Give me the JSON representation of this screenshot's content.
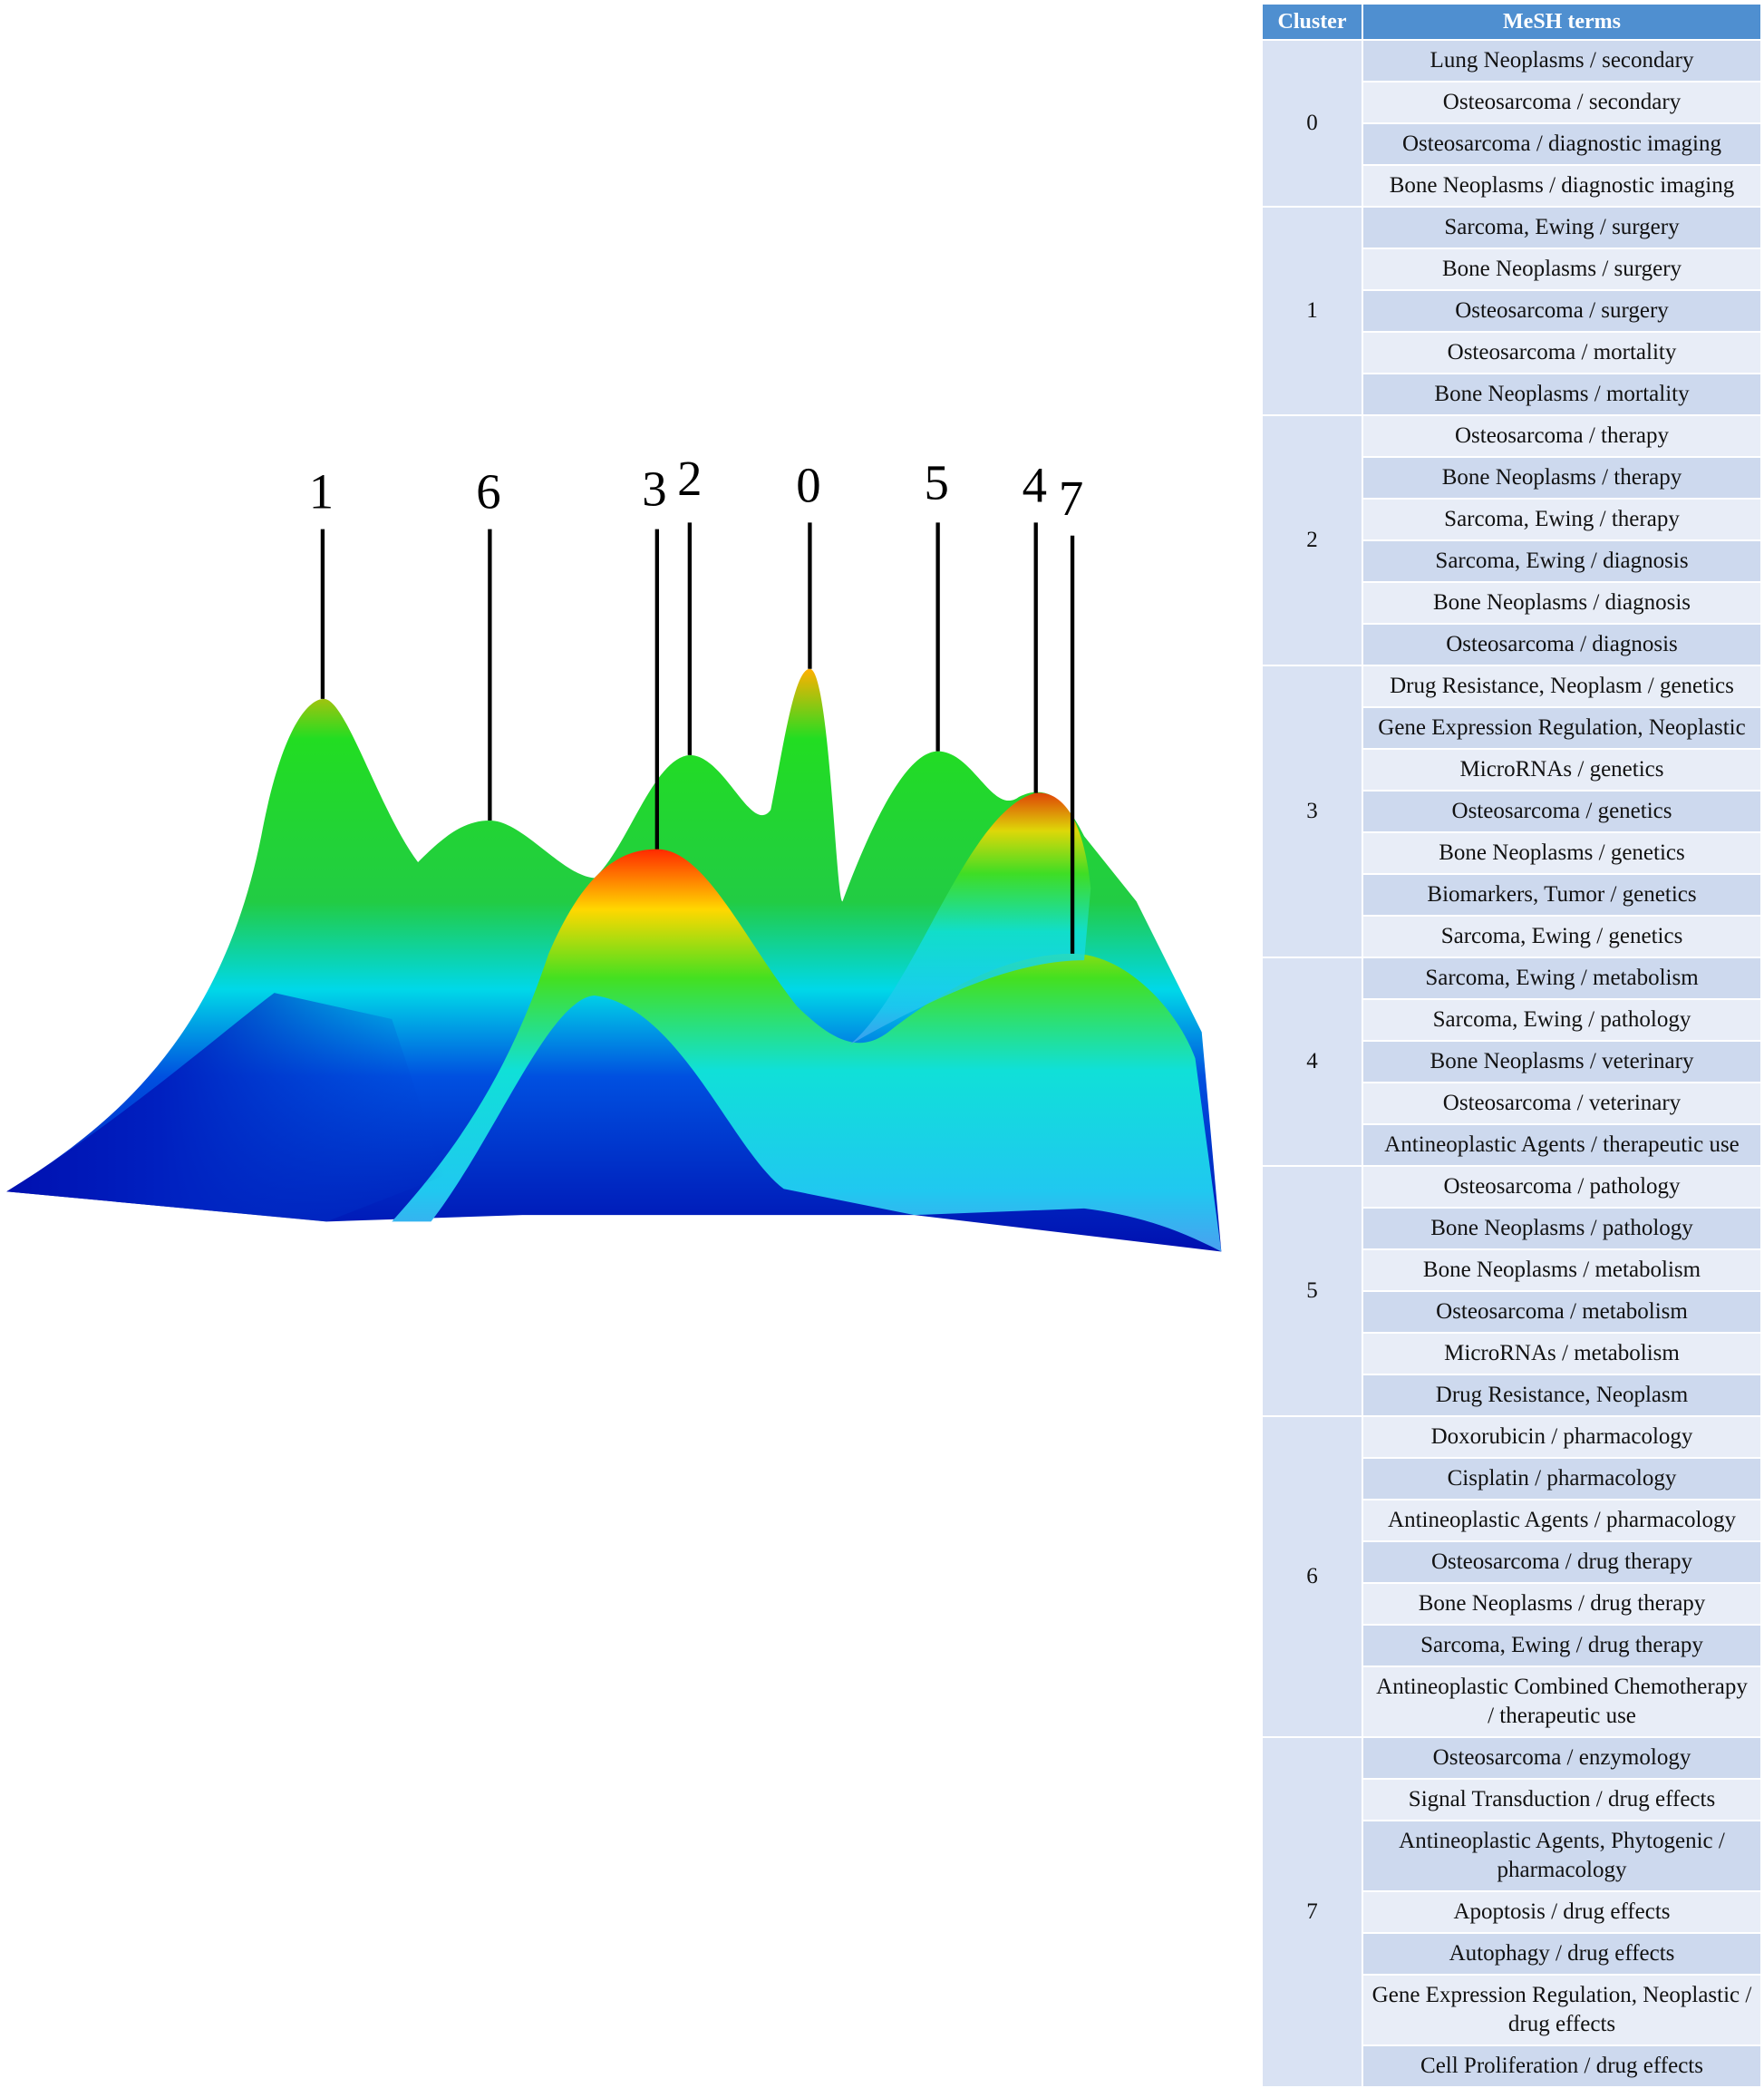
{
  "peak_labels": [
    "1",
    "6",
    "3",
    "2",
    "0",
    "5",
    "4",
    "7"
  ],
  "table": {
    "headers": [
      "Cluster",
      "MeSH terms"
    ],
    "groups": [
      {
        "cluster": "0",
        "terms": [
          "Lung Neoplasms / secondary",
          "Osteosarcoma / secondary",
          "Osteosarcoma / diagnostic imaging",
          "Bone Neoplasms / diagnostic imaging"
        ]
      },
      {
        "cluster": "1",
        "terms": [
          "Sarcoma, Ewing / surgery",
          "Bone Neoplasms / surgery",
          "Osteosarcoma / surgery",
          "Osteosarcoma / mortality",
          "Bone Neoplasms / mortality"
        ]
      },
      {
        "cluster": "2",
        "terms": [
          "Osteosarcoma / therapy",
          "Bone Neoplasms / therapy",
          "Sarcoma, Ewing / therapy",
          "Sarcoma, Ewing / diagnosis",
          "Bone Neoplasms / diagnosis",
          "Osteosarcoma / diagnosis"
        ]
      },
      {
        "cluster": "3",
        "terms": [
          "Drug Resistance, Neoplasm / genetics",
          "Gene Expression Regulation, Neoplastic",
          "MicroRNAs / genetics",
          "Osteosarcoma / genetics",
          "Bone Neoplasms / genetics",
          "Biomarkers, Tumor / genetics",
          "Sarcoma, Ewing / genetics"
        ]
      },
      {
        "cluster": "4",
        "terms": [
          "Sarcoma, Ewing / metabolism",
          "Sarcoma, Ewing / pathology",
          "Bone Neoplasms / veterinary",
          "Osteosarcoma / veterinary",
          "Antineoplastic Agents / therapeutic use"
        ]
      },
      {
        "cluster": "5",
        "terms": [
          "Osteosarcoma / pathology",
          "Bone Neoplasms / pathology",
          "Bone Neoplasms / metabolism",
          "Osteosarcoma / metabolism",
          "MicroRNAs / metabolism",
          "Drug Resistance, Neoplasm"
        ]
      },
      {
        "cluster": "6",
        "terms": [
          "Doxorubicin / pharmacology",
          "Cisplatin / pharmacology",
          "Antineoplastic Agents / pharmacology",
          "Osteosarcoma / drug therapy",
          "Bone Neoplasms / drug therapy",
          "Sarcoma, Ewing / drug therapy",
          "Antineoplastic Combined Chemotherapy / therapeutic use"
        ]
      },
      {
        "cluster": "7",
        "terms": [
          "Osteosarcoma / enzymology",
          "Signal Transduction / drug effects",
          "Antineoplastic Agents, Phytogenic / pharmacology",
          "Apoptosis / drug effects",
          "Autophagy / drug effects",
          "Gene Expression Regulation, Neoplastic / drug effects",
          "Cell Proliferation / drug effects"
        ]
      }
    ]
  }
}
